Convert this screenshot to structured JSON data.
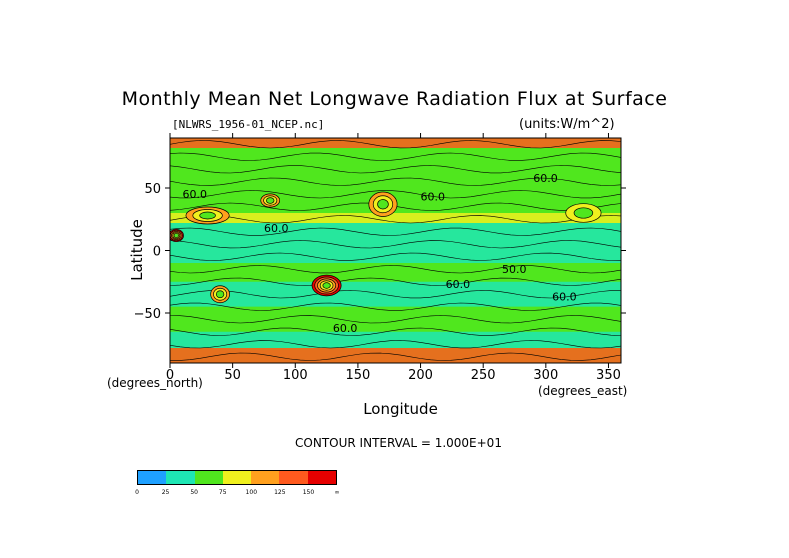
{
  "chart_data": {
    "type": "heatmap",
    "title": "Monthly Mean Net Longwave Radiation Flux at Surface",
    "file_label": "[NLWRS_1956-01_NCEP.nc]",
    "units_label": "(units:W/m^2)",
    "xlabel": "Longitude",
    "ylabel": "Latitude",
    "x_unit_note": "(degrees_east)",
    "y_unit_note": "(degrees_north)",
    "xlim": [
      0,
      360
    ],
    "ylim": [
      -90,
      90
    ],
    "x_ticks": [
      0,
      50,
      100,
      150,
      200,
      250,
      300,
      350
    ],
    "y_ticks": [
      50,
      0,
      -50
    ],
    "y_tick_labels": [
      "50",
      "0",
      "−50"
    ],
    "contour_interval_text": "CONTOUR INTERVAL = 1.000E+01",
    "contour_labels": [
      "60.0",
      "60.0",
      "60.0",
      "60.0",
      "60.0",
      "60.0",
      "50.0",
      "60.0"
    ],
    "colorbar": {
      "levels": [
        "0",
        "25",
        "50",
        "75",
        "100",
        "125",
        "150",
        "∞"
      ],
      "colors": [
        "#1ea0ff",
        "#1ee6b4",
        "#50e61e",
        "#f0f01e",
        "#ffa01e",
        "#ff5a1e",
        "#e60000"
      ]
    },
    "anomalies": [
      {
        "lon": 5,
        "lat": 12,
        "rx": 6,
        "ry": 5,
        "level": 6
      },
      {
        "lon": 125,
        "lat": -28,
        "rx": 13,
        "ry": 9,
        "level": 6
      },
      {
        "lon": 170,
        "lat": 37,
        "rx": 14,
        "ry": 12,
        "level": 4
      },
      {
        "lon": 80,
        "lat": 40,
        "rx": 9,
        "ry": 6,
        "level": 4
      },
      {
        "lon": 30,
        "lat": 28,
        "rx": 22,
        "ry": 8,
        "level": 4
      },
      {
        "lon": 330,
        "lat": 30,
        "rx": 20,
        "ry": 10,
        "level": 3
      },
      {
        "lon": 40,
        "lat": -35,
        "rx": 9,
        "ry": 8,
        "level": 4
      }
    ]
  }
}
